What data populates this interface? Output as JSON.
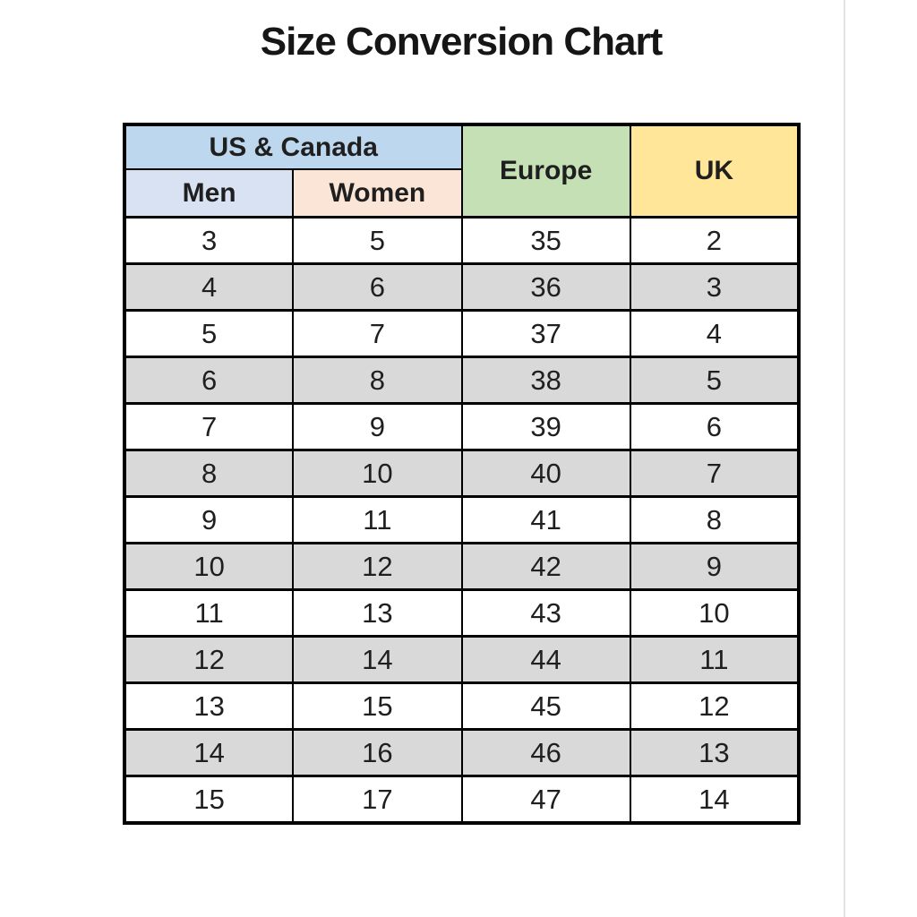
{
  "page": {
    "title": "Size Conversion Chart"
  },
  "table": {
    "headers": {
      "us_canada": "US & Canada",
      "men": "Men",
      "women": "Women",
      "europe": "Europe",
      "uk": "UK"
    },
    "rows": [
      [
        "3",
        "5",
        "35",
        "2"
      ],
      [
        "4",
        "6",
        "36",
        "3"
      ],
      [
        "5",
        "7",
        "37",
        "4"
      ],
      [
        "6",
        "8",
        "38",
        "5"
      ],
      [
        "7",
        "9",
        "39",
        "6"
      ],
      [
        "8",
        "10",
        "40",
        "7"
      ],
      [
        "9",
        "11",
        "41",
        "8"
      ],
      [
        "10",
        "12",
        "42",
        "9"
      ],
      [
        "11",
        "13",
        "43",
        "10"
      ],
      [
        "12",
        "14",
        "44",
        "11"
      ],
      [
        "13",
        "15",
        "45",
        "12"
      ],
      [
        "14",
        "16",
        "46",
        "13"
      ],
      [
        "15",
        "17",
        "47",
        "14"
      ]
    ]
  },
  "colors": {
    "us_canada_bg": "#BDD7EE",
    "men_bg": "#D9E2F3",
    "women_bg": "#FBE5D6",
    "europe_bg": "#C5E0B4",
    "uk_bg": "#FFE699",
    "alt_row_bg": "#D9D9D9",
    "border": "#000000",
    "title_text": "#161616"
  },
  "chart_data": {
    "type": "table",
    "title": "Size Conversion Chart",
    "column_groups": [
      {
        "label": "US & Canada",
        "columns": [
          "Men",
          "Women"
        ]
      },
      {
        "label": "Europe",
        "columns": [
          "Europe"
        ]
      },
      {
        "label": "UK",
        "columns": [
          "UK"
        ]
      }
    ],
    "columns": [
      "US & Canada Men",
      "US & Canada Women",
      "Europe",
      "UK"
    ],
    "rows": [
      [
        3,
        5,
        35,
        2
      ],
      [
        4,
        6,
        36,
        3
      ],
      [
        5,
        7,
        37,
        4
      ],
      [
        6,
        8,
        38,
        5
      ],
      [
        7,
        9,
        39,
        6
      ],
      [
        8,
        10,
        40,
        7
      ],
      [
        9,
        11,
        41,
        8
      ],
      [
        10,
        12,
        42,
        9
      ],
      [
        11,
        13,
        43,
        10
      ],
      [
        12,
        14,
        44,
        11
      ],
      [
        13,
        15,
        45,
        12
      ],
      [
        14,
        16,
        46,
        13
      ],
      [
        15,
        17,
        47,
        14
      ]
    ],
    "layout": {
      "alternating_row_shading": true,
      "grid": true
    }
  }
}
